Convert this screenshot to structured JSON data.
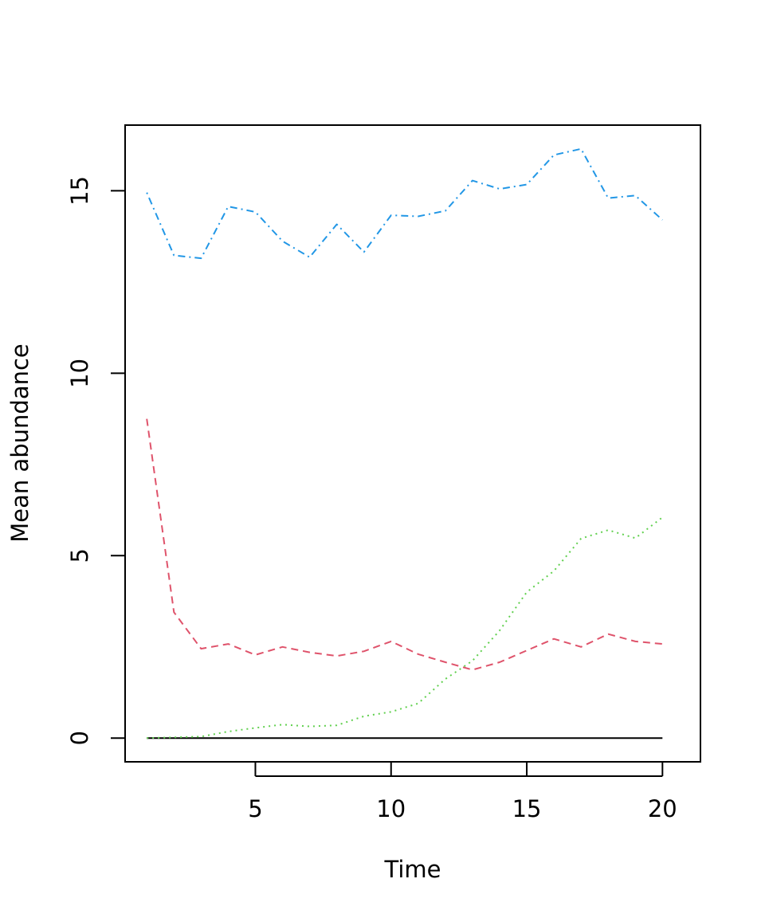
{
  "chart_data": {
    "type": "line",
    "title": "",
    "xlabel": "Time",
    "ylabel": "Mean abundance",
    "xlim": [
      0.2,
      21.4
    ],
    "ylim": [
      -0.65,
      16.8
    ],
    "grid": false,
    "legend": "none",
    "x_ticks": [
      5,
      10,
      15,
      20
    ],
    "y_ticks": [
      0,
      5,
      10,
      15
    ],
    "x_tick_labels": [
      "5",
      "10",
      "15",
      "20"
    ],
    "y_tick_labels": [
      "0",
      "5",
      "10",
      "15"
    ],
    "x": [
      1,
      2,
      3,
      4,
      5,
      6,
      7,
      8,
      9,
      10,
      11,
      12,
      13,
      14,
      15,
      16,
      17,
      18,
      19,
      20
    ],
    "series": [
      {
        "color": "#000000",
        "dash": "solid",
        "values": [
          0,
          0,
          0,
          0,
          0,
          0,
          0,
          0,
          0,
          0,
          0,
          0,
          0,
          0,
          0,
          0,
          0,
          0,
          0,
          0
        ]
      },
      {
        "color": "#DF536B",
        "dash": "dashed",
        "values": [
          8.75,
          3.45,
          2.45,
          2.58,
          2.28,
          2.5,
          2.35,
          2.25,
          2.38,
          2.65,
          2.3,
          2.08,
          1.87,
          2.08,
          2.4,
          2.72,
          2.5,
          2.85,
          2.65,
          2.58
        ]
      },
      {
        "color": "#61D04F",
        "dash": "dotted",
        "values": [
          0,
          0.02,
          0.04,
          0.18,
          0.28,
          0.37,
          0.32,
          0.35,
          0.6,
          0.72,
          0.95,
          1.62,
          2.12,
          2.95,
          4.0,
          4.58,
          5.47,
          5.7,
          5.48,
          6.05
        ]
      },
      {
        "color": "#2297E6",
        "dash": "dotdash",
        "values": [
          14.95,
          13.23,
          13.15,
          14.57,
          14.42,
          13.62,
          13.18,
          14.08,
          13.32,
          14.33,
          14.3,
          14.45,
          15.28,
          15.05,
          15.17,
          15.98,
          16.15,
          14.8,
          14.87,
          14.2
        ]
      }
    ]
  }
}
